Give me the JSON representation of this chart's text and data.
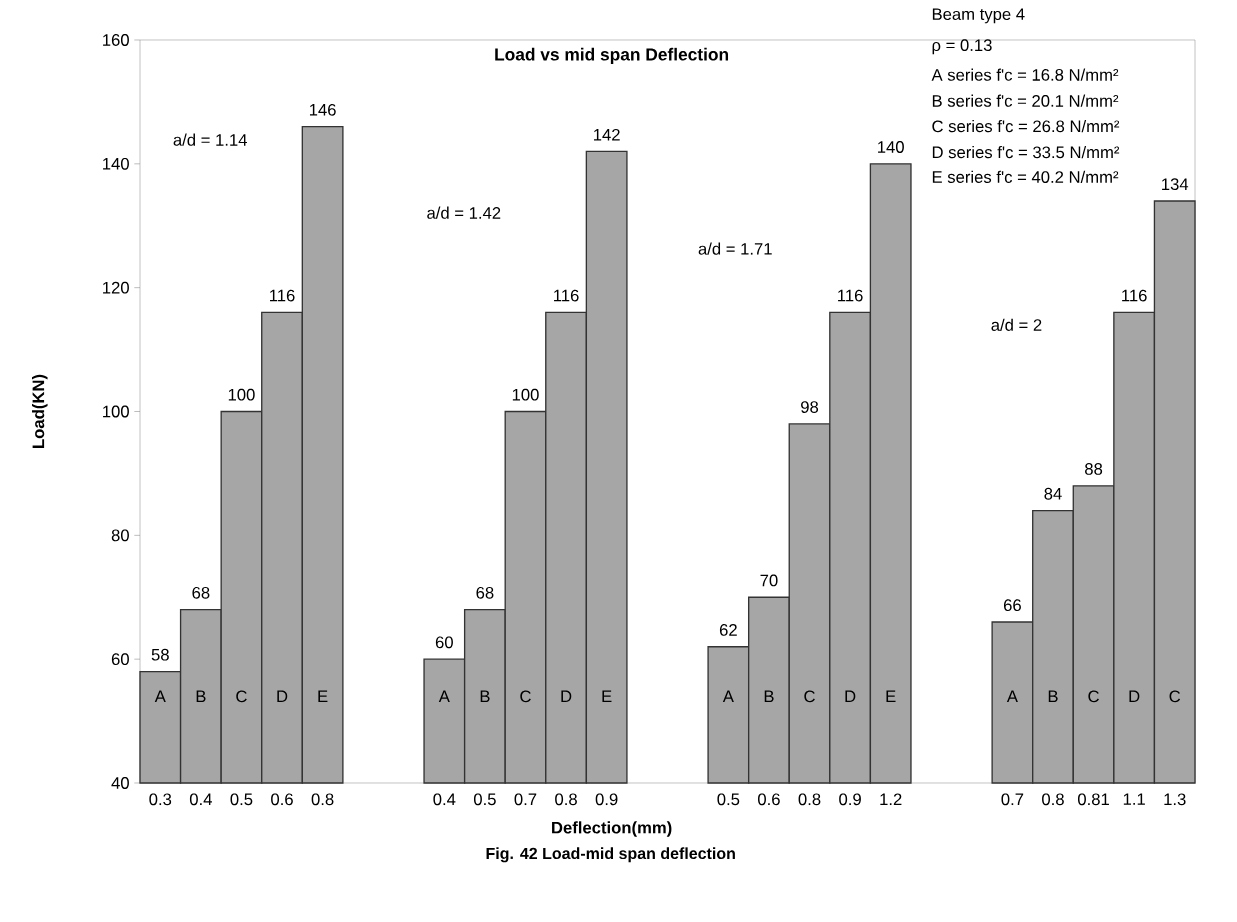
{
  "chart_data": {
    "type": "bar",
    "title": "Load vs mid span  Deflection",
    "xlabel": "Deflection(mm)",
    "ylabel": "Load(KN)",
    "categories": [
      "0.3",
      "0.4",
      "0.5",
      "0.6",
      "0.8",
      null,
      null,
      "0.4",
      "0.5",
      "0.7",
      "0.8",
      "0.9",
      null,
      null,
      "0.5",
      "0.6",
      "0.8",
      "0.9",
      "1.2",
      null,
      null,
      "0.7",
      "0.8",
      "0.81",
      "1.1",
      "1.3"
    ],
    "values": [
      58,
      68,
      100,
      116,
      146,
      null,
      null,
      60,
      68,
      100,
      116,
      142,
      null,
      null,
      62,
      70,
      98,
      116,
      140,
      null,
      null,
      66,
      84,
      88,
      116,
      134
    ],
    "color": "#a6a6a6",
    "data_labels": true,
    "ylim": [
      40,
      160
    ],
    "yticks": [
      40,
      60,
      80,
      100,
      120,
      140,
      160
    ],
    "grid": false,
    "annotations": [
      "a/d = 1.14",
      "a/d = 1.42",
      "a/d = 1.71",
      "a/d = 2",
      "Beam type 4",
      "ρ = 0.13",
      "A series f'c = 16.8 N/mm²",
      "B series f'c = 20.1 N/mm²",
      "C series f'c = 26.8 N/mm²",
      "D series f'c = 33.5 N/mm²",
      "E series f'c = 40.2 N/mm²",
      "Fig. 42 Load-mid span deflection",
      "A",
      "B",
      "C",
      "D",
      "E",
      "A",
      "B",
      "C",
      "D",
      "E",
      "A",
      "B",
      "C",
      "D",
      "E",
      "A",
      "B",
      "C",
      "D",
      "C"
    ]
  }
}
